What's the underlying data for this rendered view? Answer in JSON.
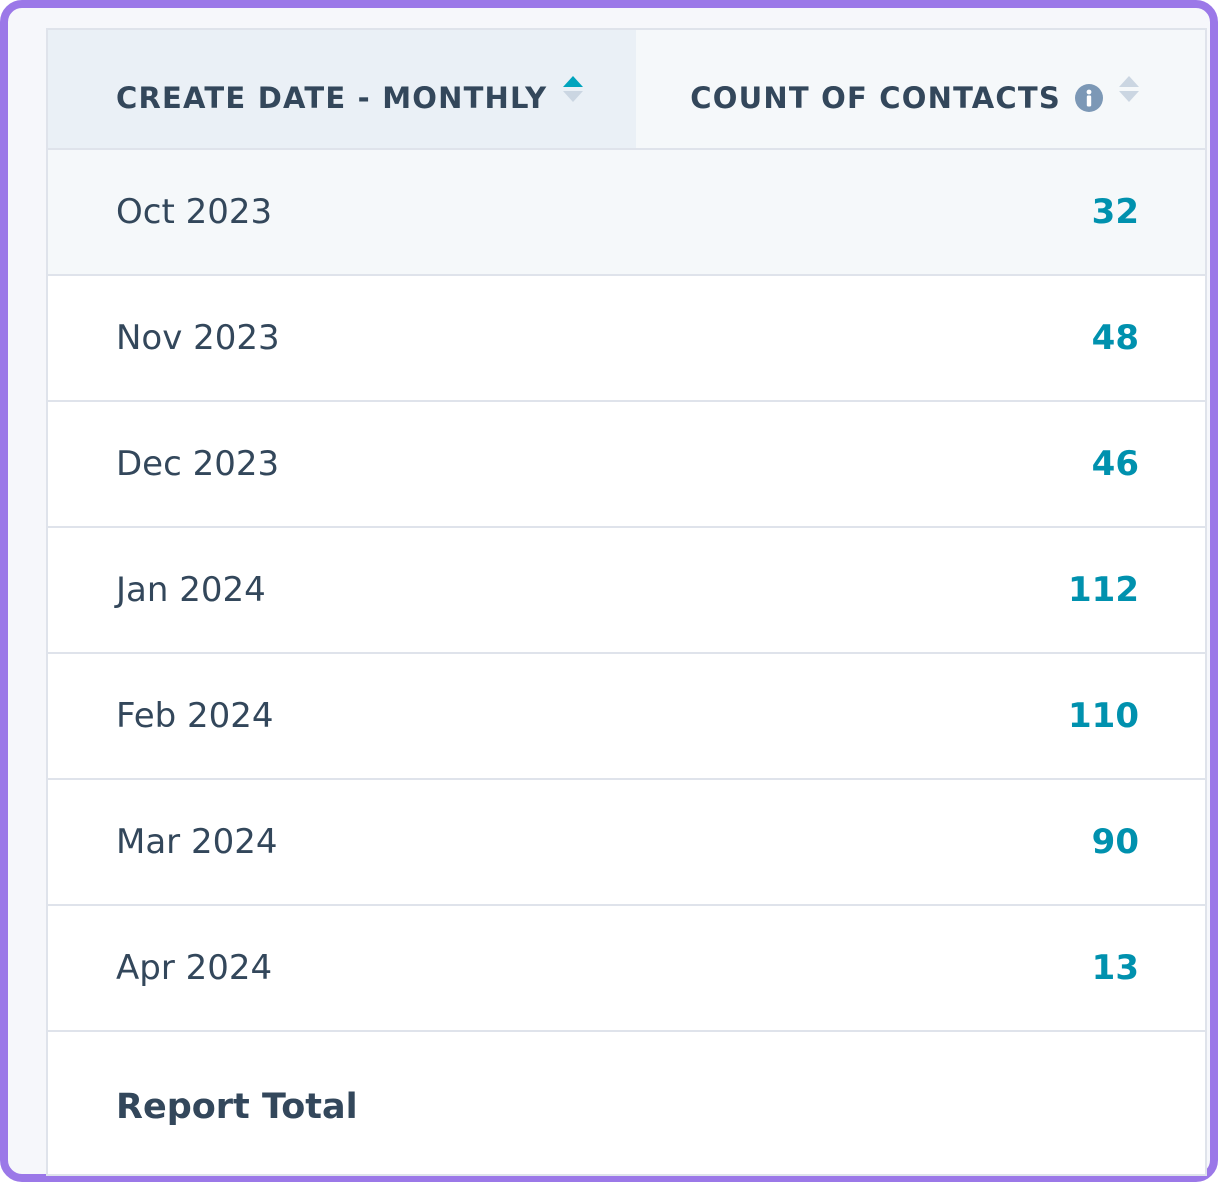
{
  "table": {
    "columns": [
      {
        "label": "CREATE DATE - MONTHLY",
        "sort": "ascending"
      },
      {
        "label": "COUNT OF CONTACTS",
        "sort": "none",
        "icon": "info-icon"
      }
    ],
    "rows": [
      {
        "date": "Oct 2023",
        "count": "32"
      },
      {
        "date": "Nov 2023",
        "count": "48"
      },
      {
        "date": "Dec 2023",
        "count": "46"
      },
      {
        "date": "Jan 2024",
        "count": "112"
      },
      {
        "date": "Feb 2024",
        "count": "110"
      },
      {
        "date": "Mar 2024",
        "count": "90"
      },
      {
        "date": "Apr 2024",
        "count": "13"
      }
    ],
    "total_label": "Report Total"
  },
  "colors": {
    "frame_border": "#9b78e8",
    "header_text": "#33475b",
    "count_text": "#0091ae",
    "sort_active": "#00a4bd",
    "sort_inactive": "#cbd6e2",
    "info_icon": "#7c98b6"
  }
}
